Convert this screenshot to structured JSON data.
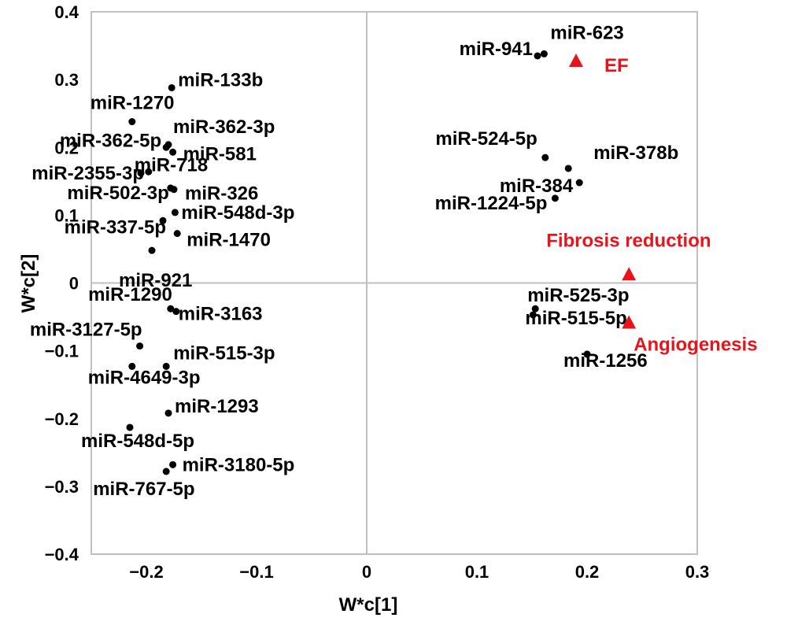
{
  "chart_data": {
    "type": "scatter",
    "xlabel": "W*c[1]",
    "ylabel": "W*c[2]",
    "xlim": [
      -0.25,
      0.3
    ],
    "ylim": [
      -0.4,
      0.4
    ],
    "xticks": [
      {
        "v": -0.2,
        "label": "−0.2"
      },
      {
        "v": -0.1,
        "label": "−0.1"
      },
      {
        "v": 0,
        "label": "0"
      },
      {
        "v": 0.1,
        "label": "0.1"
      },
      {
        "v": 0.2,
        "label": "0.2"
      },
      {
        "v": 0.3,
        "label": "0.3"
      }
    ],
    "yticks": [
      {
        "v": 0.4,
        "label": "0.4"
      },
      {
        "v": 0.3,
        "label": "0.3"
      },
      {
        "v": 0.2,
        "label": "0.2"
      },
      {
        "v": 0.1,
        "label": "0.1"
      },
      {
        "v": 0,
        "label": "0"
      },
      {
        "v": -0.1,
        "label": "−0.1"
      },
      {
        "v": -0.2,
        "label": "−0.2"
      },
      {
        "v": -0.3,
        "label": "−0.3"
      },
      {
        "v": -0.4,
        "label": "−0.4"
      }
    ],
    "grid": false,
    "zero_lines": true,
    "point_color": "#000000",
    "trait_color": "#e8141c",
    "axis_color": "#c0c0c0",
    "points": [
      {
        "name": "miR-623",
        "x": 0.161,
        "y": 0.338
      },
      {
        "name": "miR-941",
        "x": 0.155,
        "y": 0.335
      },
      {
        "name": "miR-524-5p",
        "x": 0.162,
        "y": 0.185
      },
      {
        "name": "miR-378b",
        "x": 0.183,
        "y": 0.169
      },
      {
        "name": "miR-384",
        "x": 0.193,
        "y": 0.148
      },
      {
        "name": "miR-1224-5p",
        "x": 0.171,
        "y": 0.125
      },
      {
        "name": "miR-525-3p",
        "x": 0.153,
        "y": -0.038
      },
      {
        "name": "miR-515-5p",
        "x": 0.151,
        "y": -0.047
      },
      {
        "name": "miR-1256",
        "x": 0.2,
        "y": -0.105
      },
      {
        "name": "miR-133b",
        "x": -0.177,
        "y": 0.288
      },
      {
        "name": "miR-1270",
        "x": -0.213,
        "y": 0.238
      },
      {
        "name": "miR-362-3p",
        "x": -0.18,
        "y": 0.204
      },
      {
        "name": "miR-362-5p",
        "x": -0.182,
        "y": 0.2
      },
      {
        "name": "miR-581",
        "x": -0.176,
        "y": 0.193
      },
      {
        "name": "miR-718",
        "x": -0.198,
        "y": 0.164
      },
      {
        "name": "miR-2355-3p",
        "x": -0.205,
        "y": 0.162
      },
      {
        "name": "miR-326",
        "x": -0.175,
        "y": 0.138
      },
      {
        "name": "miR-502-3p",
        "x": -0.178,
        "y": 0.14
      },
      {
        "name": "miR-548d-3p",
        "x": -0.174,
        "y": 0.104
      },
      {
        "name": "miR-337-5p",
        "x": -0.185,
        "y": 0.092
      },
      {
        "name": "miR-1470",
        "x": -0.172,
        "y": 0.073
      },
      {
        "name": "miR-921",
        "x": -0.195,
        "y": 0.048
      },
      {
        "name": "miR-1290",
        "x": -0.178,
        "y": -0.038
      },
      {
        "name": "miR-3163",
        "x": -0.173,
        "y": -0.042
      },
      {
        "name": "miR-3127-5p",
        "x": -0.206,
        "y": -0.093
      },
      {
        "name": "miR-515-3p",
        "x": -0.182,
        "y": -0.123
      },
      {
        "name": "miR-4649-3p",
        "x": -0.213,
        "y": -0.123
      },
      {
        "name": "miR-1293",
        "x": -0.18,
        "y": -0.192
      },
      {
        "name": "miR-548d-5p",
        "x": -0.215,
        "y": -0.213
      },
      {
        "name": "miR-3180-5p",
        "x": -0.176,
        "y": -0.268
      },
      {
        "name": "miR-767-5p",
        "x": -0.182,
        "y": -0.278
      }
    ],
    "traits": [
      {
        "name": "EF",
        "x": 0.19,
        "y": 0.328
      },
      {
        "name": "Fibrosis reduction",
        "x": 0.238,
        "y": 0.013
      },
      {
        "name": "Angiogenesis",
        "x": 0.238,
        "y": -0.058
      }
    ]
  }
}
